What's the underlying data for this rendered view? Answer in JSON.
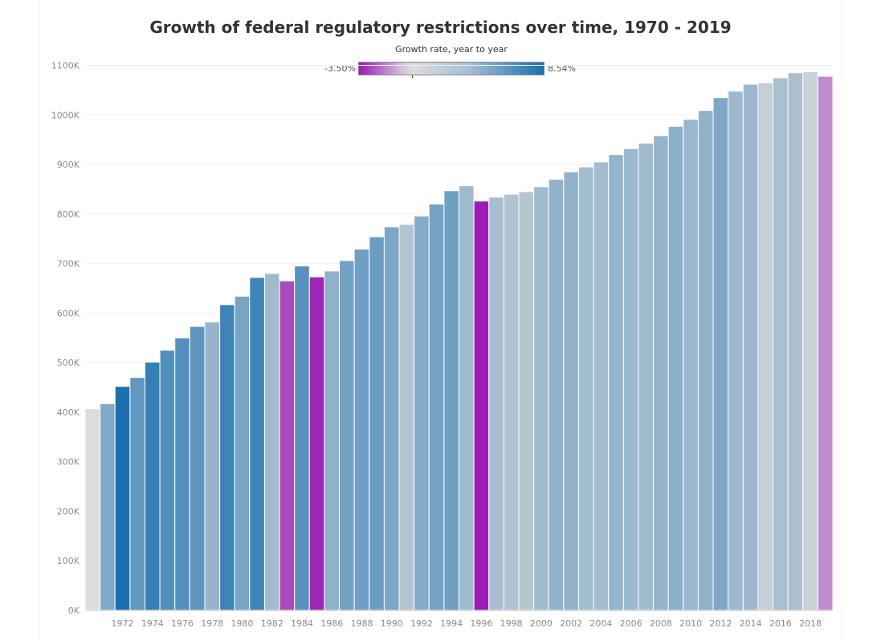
{
  "chart_data": {
    "type": "bar",
    "title": "Growth of federal regulatory restrictions over time, 1970 - 2019",
    "legend": {
      "title": "Growth rate, year to year",
      "min_label": "-3.50%",
      "max_label": "8.54%",
      "min": -3.5,
      "max": 8.54,
      "colors": {
        "negative": "#9b1bb5",
        "neutral": "#dcdcdc",
        "positive": "#1a6faf"
      }
    },
    "y_ticks": [
      {
        "value": 0,
        "label": "0K"
      },
      {
        "value": 100000,
        "label": "100K"
      },
      {
        "value": 200000,
        "label": "200K"
      },
      {
        "value": 300000,
        "label": "300K"
      },
      {
        "value": 400000,
        "label": "400K"
      },
      {
        "value": 500000,
        "label": "500K"
      },
      {
        "value": 600000,
        "label": "600K"
      },
      {
        "value": 700000,
        "label": "700K"
      },
      {
        "value": 800000,
        "label": "800K"
      },
      {
        "value": 900000,
        "label": "900K"
      },
      {
        "value": 1000000,
        "label": "1000K"
      },
      {
        "value": 1100000,
        "label": "1100K"
      }
    ],
    "ylim": [
      0,
      1100000
    ],
    "grid": true,
    "x": [
      1970,
      1971,
      1972,
      1973,
      1974,
      1975,
      1976,
      1977,
      1978,
      1979,
      1980,
      1981,
      1982,
      1983,
      1984,
      1985,
      1986,
      1987,
      1988,
      1989,
      1990,
      1991,
      1992,
      1993,
      1994,
      1995,
      1996,
      1997,
      1998,
      1999,
      2000,
      2001,
      2002,
      2003,
      2004,
      2005,
      2006,
      2007,
      2008,
      2009,
      2010,
      2011,
      2012,
      2013,
      2014,
      2015,
      2016,
      2017,
      2018,
      2019
    ],
    "x_tick_labels": [
      "1972",
      "1974",
      "1976",
      "1978",
      "1980",
      "1982",
      "1984",
      "1986",
      "1988",
      "1990",
      "1992",
      "1994",
      "1996",
      "1998",
      "2000",
      "2002",
      "2004",
      "2006",
      "2008",
      "2010",
      "2012",
      "2014",
      "2016",
      "2018"
    ],
    "values": [
      407000,
      417000,
      452000,
      470000,
      501000,
      525000,
      550000,
      573000,
      582000,
      617000,
      634000,
      672000,
      680000,
      665000,
      695000,
      673000,
      685000,
      706000,
      729000,
      754000,
      774000,
      779000,
      796000,
      820000,
      847000,
      857000,
      826000,
      834000,
      840000,
      845000,
      855000,
      870000,
      885000,
      895000,
      905000,
      920000,
      932000,
      943000,
      958000,
      977000,
      991000,
      1009000,
      1035000,
      1048000,
      1062000,
      1065000,
      1075000,
      1085000,
      1087000,
      1078000
    ],
    "growth_rates": [
      0.0,
      2.46,
      8.39,
      3.98,
      6.6,
      4.79,
      4.76,
      4.18,
      1.57,
      6.01,
      2.76,
      5.99,
      1.19,
      -2.21,
      4.51,
      -3.17,
      1.78,
      3.07,
      3.26,
      3.43,
      2.65,
      0.65,
      2.18,
      3.02,
      3.29,
      1.18,
      -3.62,
      0.97,
      0.72,
      0.6,
      1.18,
      1.75,
      1.72,
      1.13,
      1.12,
      1.66,
      1.3,
      1.18,
      1.59,
      1.98,
      1.43,
      1.82,
      2.58,
      1.26,
      1.34,
      0.28,
      0.94,
      0.93,
      0.18,
      -0.83
    ]
  }
}
